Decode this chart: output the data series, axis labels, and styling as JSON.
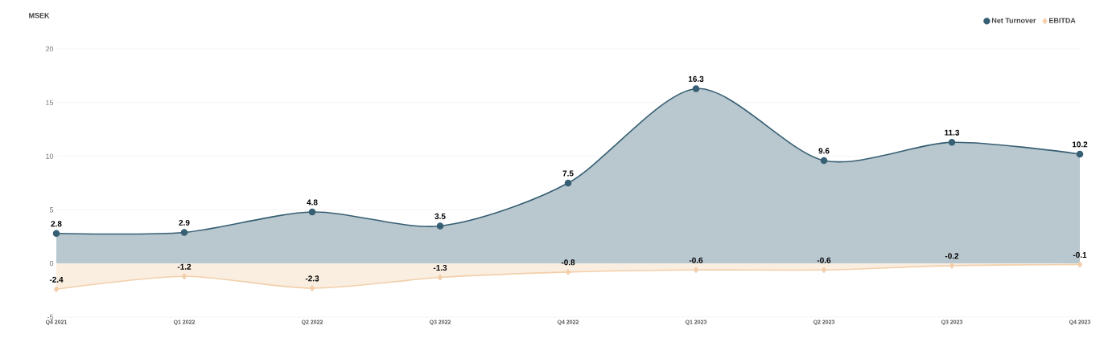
{
  "chart_data": {
    "type": "area",
    "ylabel": "MSEK",
    "categories": [
      "Q4 2021",
      "Q1 2022",
      "Q2 2022",
      "Q3 2022",
      "Q4 2022",
      "Q1 2023",
      "Q2 2023",
      "Q3 2023",
      "Q4 2023"
    ],
    "series": [
      {
        "name": "Net Turnover",
        "color": "#365f73",
        "marker": "circle",
        "values": [
          2.8,
          2.9,
          4.8,
          3.5,
          7.5,
          16.3,
          9.6,
          11.3,
          10.2
        ]
      },
      {
        "name": "EBITDA",
        "color": "#f2cfaa",
        "marker": "diamond",
        "values": [
          -2.4,
          -1.2,
          -2.3,
          -1.3,
          -0.8,
          -0.6,
          -0.6,
          -0.2,
          -0.1
        ]
      }
    ],
    "ylim": [
      -5,
      20
    ],
    "yticks": [
      -5,
      0,
      5,
      10,
      15,
      20
    ],
    "grid": "y",
    "legend": "top right",
    "data_labels": true
  }
}
